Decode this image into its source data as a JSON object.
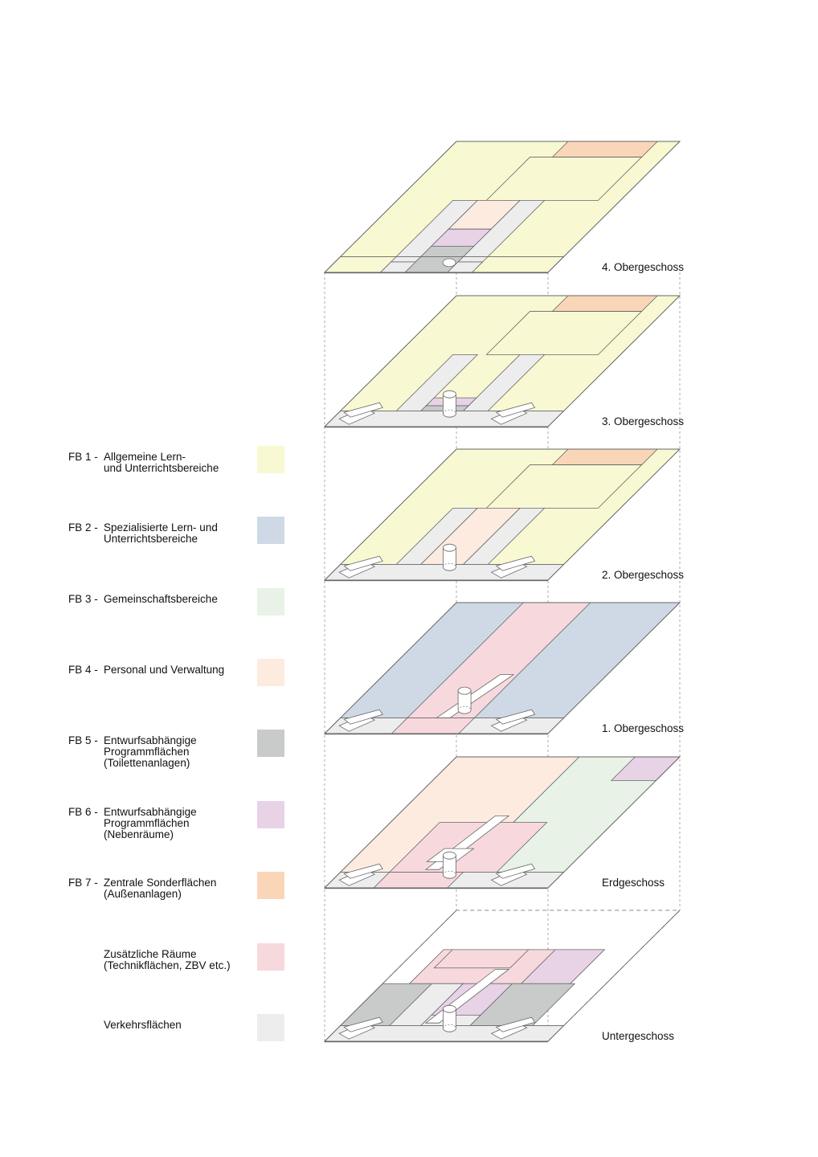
{
  "legend": [
    {
      "code": "FB 1 -",
      "lines": [
        "Allgemeine Lern-",
        "und Unterrichtsbereiche"
      ],
      "color": "#f8f8d3",
      "icon": "swatch-fb1"
    },
    {
      "code": "FB 2 -",
      "lines": [
        "Spezialisierte Lern- und",
        "Unterrichtsbereiche"
      ],
      "color": "#cfd9e5",
      "icon": "swatch-fb2"
    },
    {
      "code": "FB 3 -",
      "lines": [
        "Gemeinschaftsbereiche"
      ],
      "color": "#e8f2e6",
      "icon": "swatch-fb3"
    },
    {
      "code": "FB 4 -",
      "lines": [
        "Personal und Verwaltung"
      ],
      "color": "#fdebe0",
      "icon": "swatch-fb4"
    },
    {
      "code": "FB 5 -",
      "lines": [
        "Entwurfsabhängige",
        "Programmflächen",
        "(Toilettenanlagen)"
      ],
      "color": "#c9cbca",
      "icon": "swatch-fb5"
    },
    {
      "code": "FB 6 -",
      "lines": [
        "Entwurfsabhängige",
        "Programmflächen",
        "(Nebenräume)"
      ],
      "color": "#e8d2e6",
      "icon": "swatch-fb6"
    },
    {
      "code": "FB 7 -",
      "lines": [
        "Zentrale Sonderflächen",
        "(Außenanlagen)"
      ],
      "color": "#fad6b8",
      "icon": "swatch-fb7"
    },
    {
      "code": "",
      "lines": [
        "Zusätzliche Räume",
        "(Technikflächen, ZBV etc.)"
      ],
      "color": "#f7d9dd",
      "icon": "swatch-zusatz"
    },
    {
      "code": "",
      "lines": [
        "Verkehrsflächen"
      ],
      "color": "#ededed",
      "icon": "swatch-verkehr"
    }
  ],
  "floors": [
    {
      "label": "4. Obergeschoss",
      "key": "og4"
    },
    {
      "label": "3. Obergeschoss",
      "key": "og3"
    },
    {
      "label": "2. Obergeschoss",
      "key": "og2"
    },
    {
      "label": "1. Obergeschoss",
      "key": "og1"
    },
    {
      "label": "Erdgeschoss",
      "key": "eg"
    },
    {
      "label": "Untergeschoss",
      "key": "ug"
    }
  ]
}
